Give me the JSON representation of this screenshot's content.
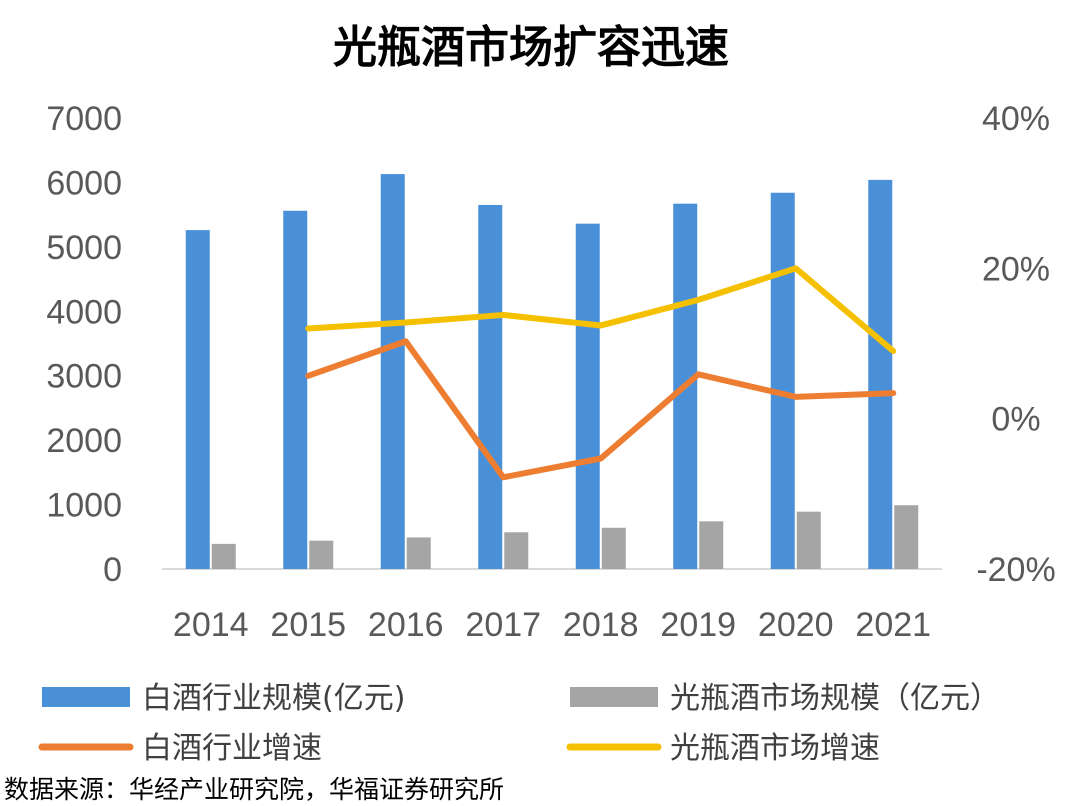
{
  "chart_data": {
    "type": "bar",
    "title": "光瓶酒市场扩容迅速",
    "categories": [
      "2014",
      "2015",
      "2016",
      "2017",
      "2018",
      "2019",
      "2020",
      "2021"
    ],
    "y_left": {
      "ylim": [
        0,
        7000
      ],
      "ticks": [
        "0",
        "1000",
        "2000",
        "3000",
        "4000",
        "5000",
        "6000",
        "7000"
      ]
    },
    "y_right": {
      "ylim": [
        -20,
        40
      ],
      "unit": "%",
      "ticks": [
        "-20%",
        "0%",
        "20%",
        "40%"
      ]
    },
    "series": [
      {
        "name": "白酒行业规模(亿元)",
        "type": "bar",
        "axis": "left",
        "color": "#4a90d9",
        "values": [
          5260,
          5560,
          6130,
          5650,
          5360,
          5670,
          5840,
          6040
        ]
      },
      {
        "name": "光瓶酒市场规模（亿元）",
        "type": "bar",
        "axis": "left",
        "color": "#a5a5a5",
        "values": [
          390,
          440,
          490,
          570,
          640,
          740,
          890,
          990
        ]
      },
      {
        "name": "白酒行业增速",
        "type": "line",
        "axis": "right",
        "color": "#ed7d31",
        "values": [
          null,
          5.7,
          10.3,
          -7.8,
          -5.3,
          5.9,
          2.9,
          3.4
        ]
      },
      {
        "name": "光瓶酒市场增速",
        "type": "line",
        "axis": "right",
        "color": "#f5c000",
        "values": [
          null,
          12.0,
          12.8,
          13.8,
          12.4,
          15.8,
          20.0,
          9.0
        ]
      }
    ],
    "legend_position": "bottom",
    "grid": false
  },
  "source_text": "数据来源：华经产业研究院，华福证券研究所"
}
